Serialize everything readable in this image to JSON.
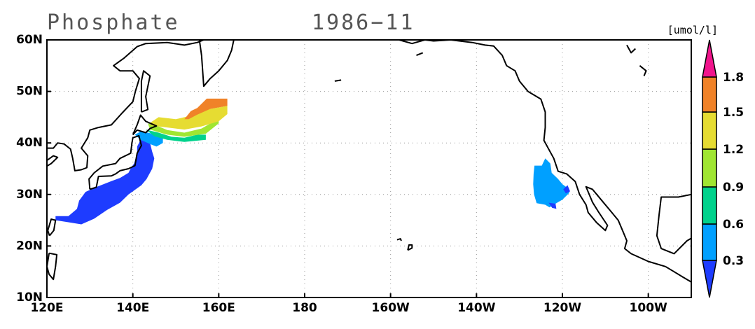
{
  "header": {
    "title": "Phosphate",
    "date": "1986−11",
    "units": "[umol/l]"
  },
  "map": {
    "lat_labels": [
      "10N",
      "20N",
      "30N",
      "40N",
      "50N",
      "60N"
    ],
    "lon_labels": [
      "120E",
      "140E",
      "160E",
      "180",
      "160W",
      "140W",
      "120W",
      "100W"
    ]
  },
  "colorbar": {
    "labels": [
      "0.3",
      "0.6",
      "0.9",
      "1.2",
      "1.5",
      "1.8"
    ],
    "colors": [
      "#1e3cff",
      "#00a0ff",
      "#00d28c",
      "#a0e632",
      "#e6dc32",
      "#f08228",
      "#f0148c"
    ]
  }
}
